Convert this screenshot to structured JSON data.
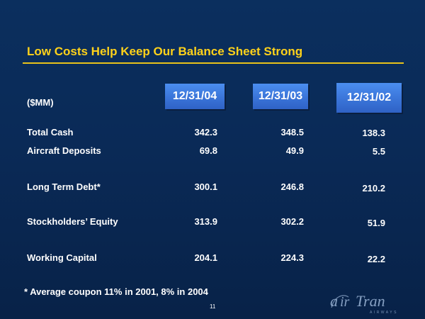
{
  "slide": {
    "title": "Low Costs Help Keep Our Balance Sheet Strong",
    "unit_label": "($MM)",
    "columns": [
      "12/31/04",
      "12/31/03",
      "12/31/02"
    ],
    "rows": [
      {
        "label": "Total Cash",
        "values": [
          "342.3",
          "348.5",
          "138.3"
        ]
      },
      {
        "label": "Aircraft Deposits",
        "values": [
          "69.8",
          "49.9",
          "5.5"
        ]
      },
      {
        "label": "Long Term Debt*",
        "values": [
          "300.1",
          "246.8",
          "210.2"
        ]
      },
      {
        "label": "Stockholders’ Equity",
        "values": [
          "313.9",
          "302.2",
          "51.9"
        ]
      },
      {
        "label": "Working Capital",
        "values": [
          "204.1",
          "224.3",
          "22.2"
        ]
      }
    ],
    "footnote": "* Average coupon 11% in 2001, 8% in 2004",
    "page_number": "11"
  },
  "logo": {
    "name": "airtran-logo",
    "text": "AirTran",
    "subtext": "AIRWAYS"
  },
  "colors": {
    "background": "#0a2a57",
    "title": "#ffd21a",
    "header_box": "#3a74d8"
  }
}
